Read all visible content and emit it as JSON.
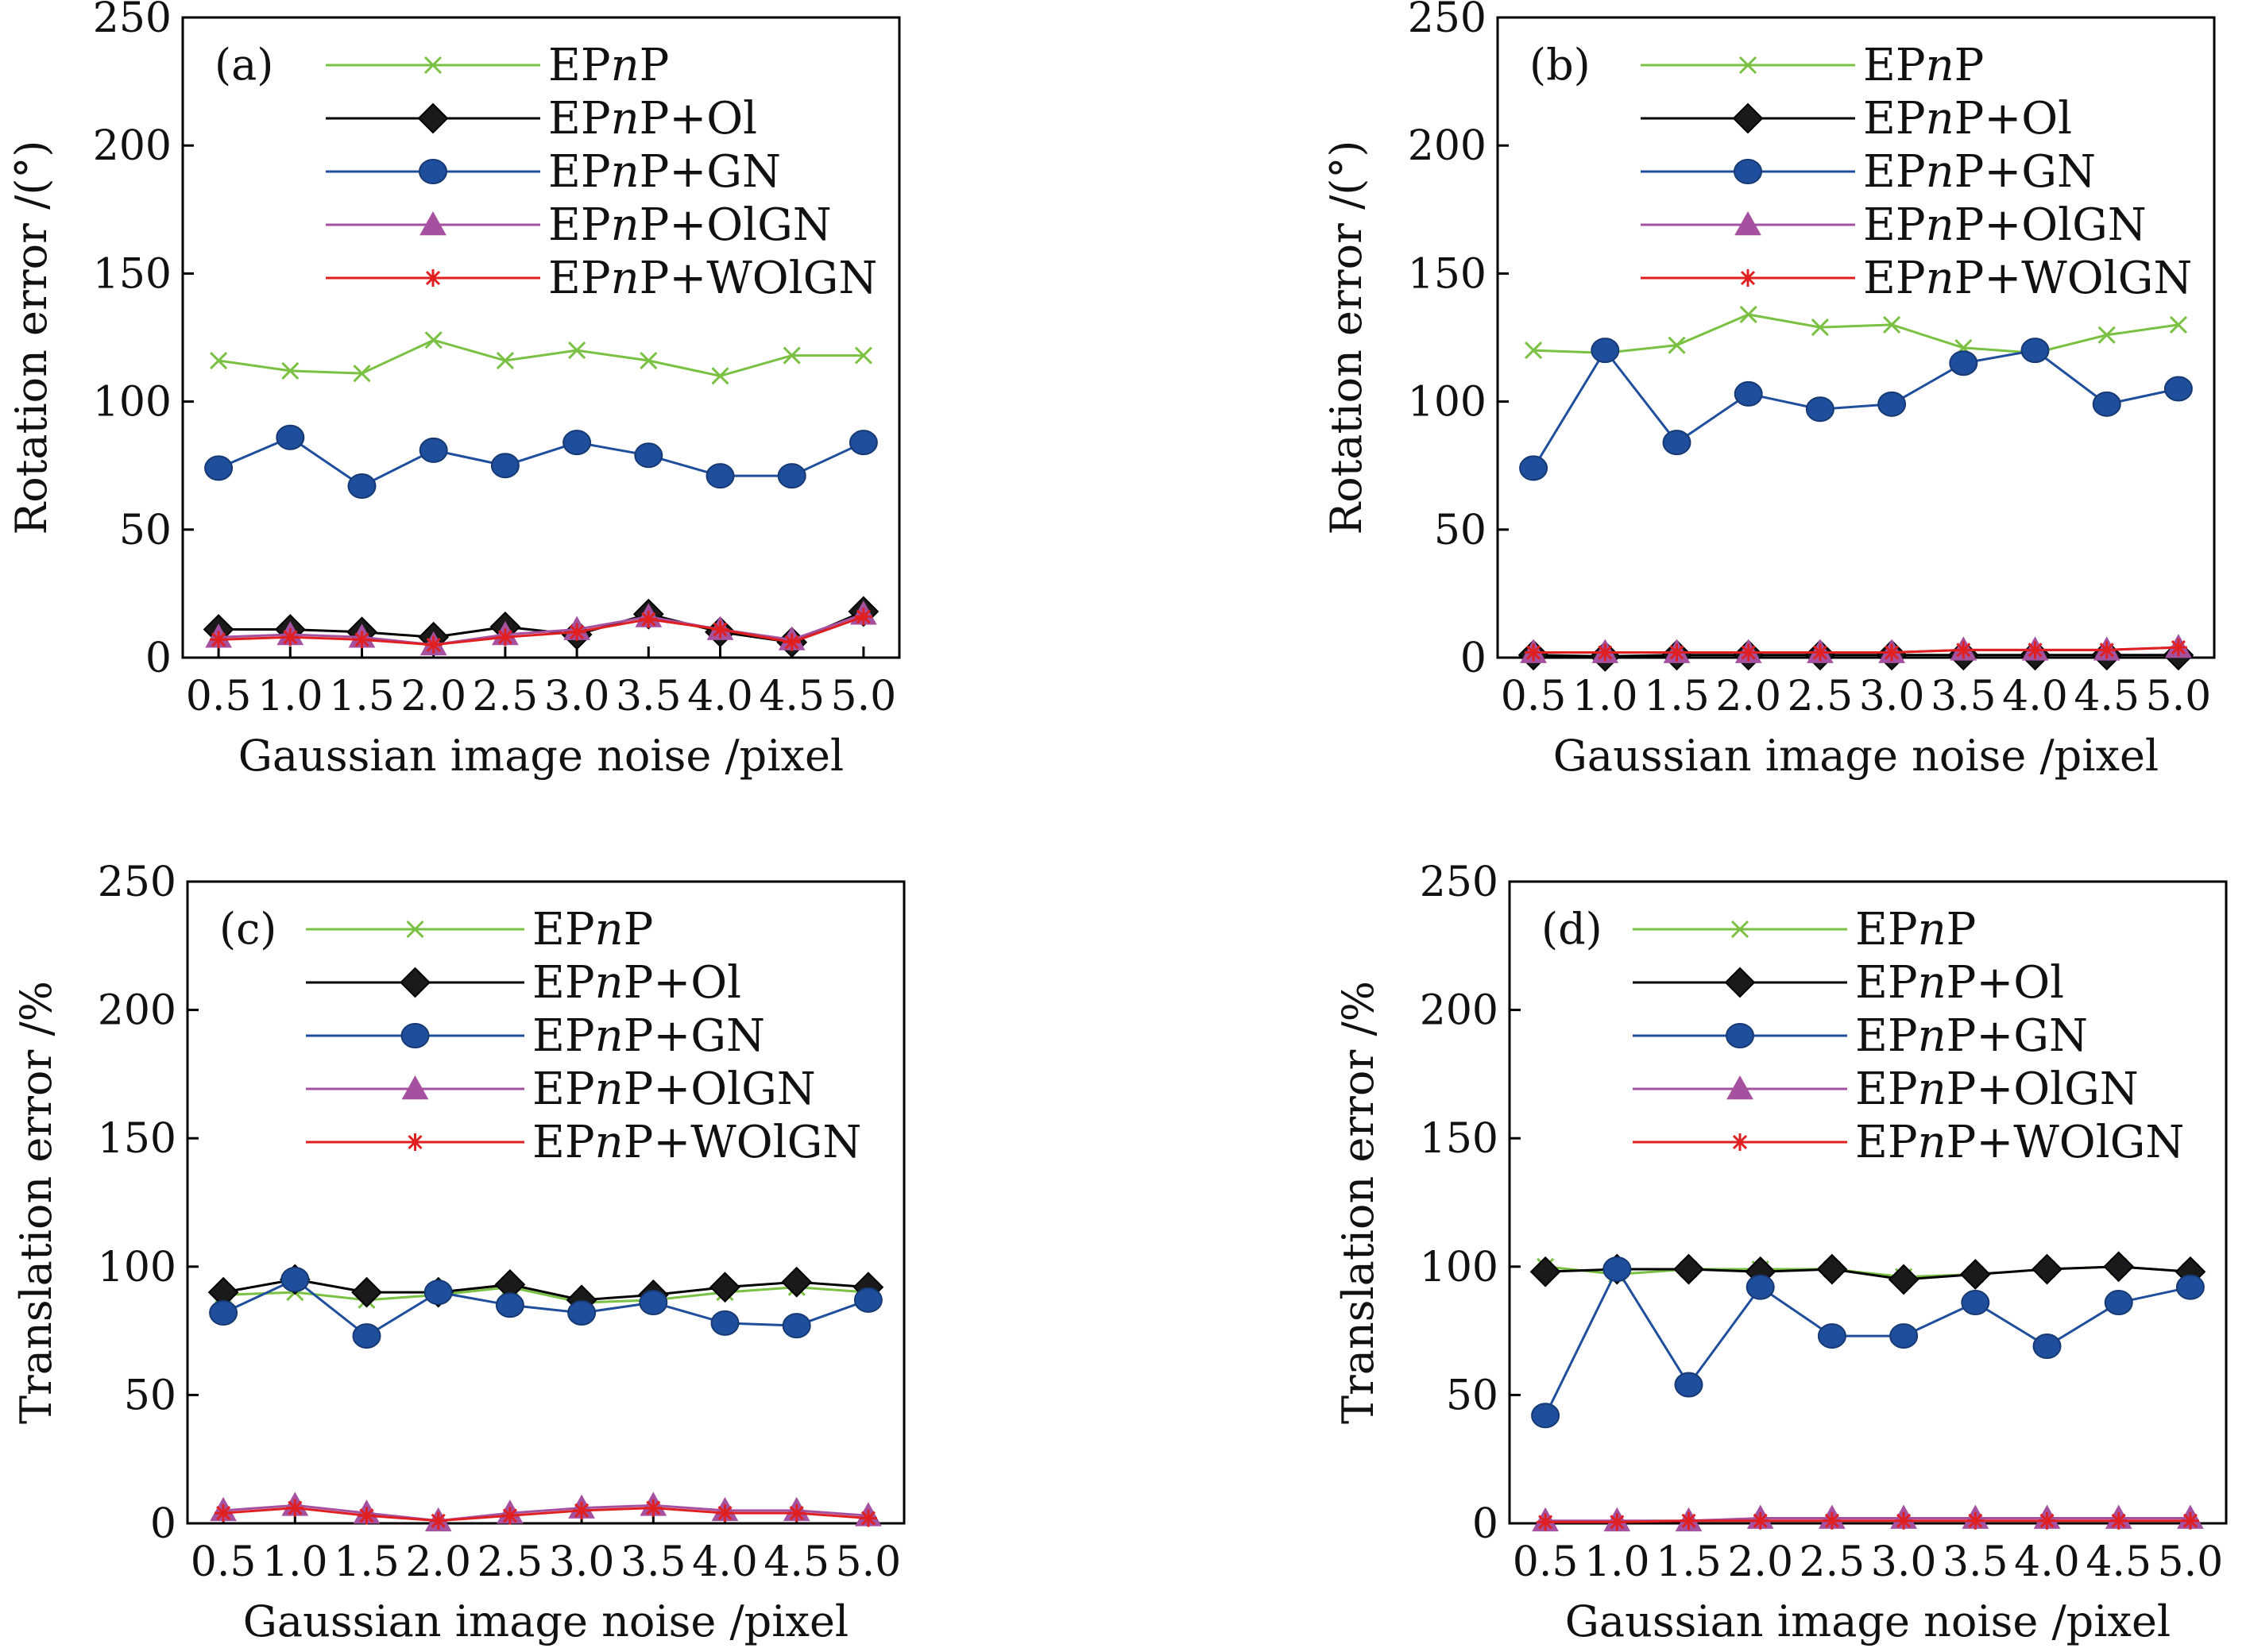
{
  "chart_data": [
    {
      "type": "line",
      "panel_label": "(a)",
      "xlabel": "Gaussian image noise /pixel",
      "ylabel": "Rotation error /(°)",
      "ylim": [
        0,
        250
      ],
      "yticks": [
        "0",
        "50",
        "100",
        "150",
        "200",
        "250"
      ],
      "categories": [
        "0.5",
        "1.0",
        "1.5",
        "2.0",
        "2.5",
        "3.0",
        "3.5",
        "4.0",
        "4.5",
        "5.0"
      ],
      "legend_position": "top-right",
      "series": [
        {
          "name": "EPnP",
          "name_parts": [
            "EP",
            "n",
            "P"
          ],
          "color": "#7ac143",
          "marker": "x",
          "values": [
            116,
            112,
            111,
            124,
            116,
            120,
            116,
            110,
            118,
            118
          ]
        },
        {
          "name": "EPnP+Ol",
          "name_parts": [
            "EP",
            "n",
            "P+Ol"
          ],
          "color": "#000000",
          "marker": "diamond",
          "values": [
            11,
            11,
            10,
            8,
            12,
            9,
            17,
            10,
            6,
            18
          ]
        },
        {
          "name": "EPnP+GN",
          "name_parts": [
            "EP",
            "n",
            "P+GN"
          ],
          "color": "#1f4e9c",
          "marker": "circle",
          "values": [
            74,
            86,
            67,
            81,
            75,
            84,
            79,
            71,
            71,
            84
          ]
        },
        {
          "name": "EPnP+OlGN",
          "name_parts": [
            "EP",
            "n",
            "P+OlGN"
          ],
          "color": "#a650a0",
          "marker": "triangle",
          "values": [
            8,
            9,
            8,
            5,
            9,
            11,
            16,
            11,
            7,
            17
          ]
        },
        {
          "name": "EPnP+WOlGN",
          "name_parts": [
            "EP",
            "n",
            "P+WOlGN"
          ],
          "color": "#e02020",
          "marker": "star",
          "values": [
            7,
            8,
            7,
            5,
            8,
            10,
            15,
            11,
            6,
            16
          ]
        }
      ]
    },
    {
      "type": "line",
      "panel_label": "(b)",
      "xlabel": "Gaussian image noise /pixel",
      "ylabel": "Rotation error /(°)",
      "ylim": [
        0,
        250
      ],
      "yticks": [
        "0",
        "50",
        "100",
        "150",
        "200",
        "250"
      ],
      "categories": [
        "0.5",
        "1.0",
        "1.5",
        "2.0",
        "2.5",
        "3.0",
        "3.5",
        "4.0",
        "4.5",
        "5.0"
      ],
      "legend_position": "top-right",
      "series": [
        {
          "name": "EPnP",
          "name_parts": [
            "EP",
            "n",
            "P"
          ],
          "color": "#7ac143",
          "marker": "x",
          "values": [
            120,
            119,
            122,
            134,
            129,
            130,
            121,
            119,
            126,
            130
          ]
        },
        {
          "name": "EPnP+Ol",
          "name_parts": [
            "EP",
            "n",
            "P+Ol"
          ],
          "color": "#000000",
          "marker": "diamond",
          "values": [
            1,
            0.5,
            1,
            1,
            1,
            1,
            1,
            1,
            1,
            1
          ]
        },
        {
          "name": "EPnP+GN",
          "name_parts": [
            "EP",
            "n",
            "P+GN"
          ],
          "color": "#1f4e9c",
          "marker": "circle",
          "values": [
            74,
            120,
            84,
            103,
            97,
            99,
            115,
            120,
            99,
            105
          ]
        },
        {
          "name": "EPnP+OlGN",
          "name_parts": [
            "EP",
            "n",
            "P+OlGN"
          ],
          "color": "#a650a0",
          "marker": "triangle",
          "values": [
            2,
            2,
            2,
            2,
            2,
            2,
            3,
            3,
            3,
            4
          ]
        },
        {
          "name": "EPnP+WOlGN",
          "name_parts": [
            "EP",
            "n",
            "P+WOlGN"
          ],
          "color": "#e02020",
          "marker": "star",
          "values": [
            2,
            2,
            2,
            2,
            2,
            2,
            3,
            3,
            3,
            4
          ]
        }
      ]
    },
    {
      "type": "line",
      "panel_label": "(c)",
      "xlabel": "Gaussian image noise /pixel",
      "ylabel": "Translation error /%",
      "ylim": [
        0,
        250
      ],
      "yticks": [
        "0",
        "50",
        "100",
        "150",
        "200",
        "250"
      ],
      "categories": [
        "0.5",
        "1.0",
        "1.5",
        "2.0",
        "2.5",
        "3.0",
        "3.5",
        "4.0",
        "4.5",
        "5.0"
      ],
      "legend_position": "top-right",
      "series": [
        {
          "name": "EPnP",
          "name_parts": [
            "EP",
            "n",
            "P"
          ],
          "color": "#7ac143",
          "marker": "x",
          "values": [
            89,
            90,
            87,
            89,
            92,
            86,
            87,
            90,
            92,
            90
          ]
        },
        {
          "name": "EPnP+Ol",
          "name_parts": [
            "EP",
            "n",
            "P+Ol"
          ],
          "color": "#000000",
          "marker": "diamond",
          "values": [
            90,
            95,
            90,
            90,
            93,
            87,
            89,
            92,
            94,
            92
          ]
        },
        {
          "name": "EPnP+GN",
          "name_parts": [
            "EP",
            "n",
            "P+GN"
          ],
          "color": "#1f4e9c",
          "marker": "circle",
          "values": [
            82,
            95,
            73,
            90,
            85,
            82,
            86,
            78,
            77,
            87
          ]
        },
        {
          "name": "EPnP+OlGN",
          "name_parts": [
            "EP",
            "n",
            "P+OlGN"
          ],
          "color": "#a650a0",
          "marker": "triangle",
          "values": [
            5,
            7,
            4,
            1,
            4,
            6,
            7,
            5,
            5,
            3
          ]
        },
        {
          "name": "EPnP+WOlGN",
          "name_parts": [
            "EP",
            "n",
            "P+WOlGN"
          ],
          "color": "#e02020",
          "marker": "star",
          "values": [
            4,
            6,
            3,
            1,
            3,
            5,
            6,
            4,
            4,
            2
          ]
        }
      ]
    },
    {
      "type": "line",
      "panel_label": "(d)",
      "xlabel": "Gaussian image noise /pixel",
      "ylabel": "Translation error /%",
      "ylim": [
        0,
        250
      ],
      "yticks": [
        "0",
        "50",
        "100",
        "150",
        "200",
        "250"
      ],
      "categories": [
        "0.5",
        "1.0",
        "1.5",
        "2.0",
        "2.5",
        "3.0",
        "3.5",
        "4.0",
        "4.5",
        "5.0"
      ],
      "legend_position": "top-right",
      "series": [
        {
          "name": "EPnP",
          "name_parts": [
            "EP",
            "n",
            "P"
          ],
          "color": "#7ac143",
          "marker": "x",
          "values": [
            100,
            97,
            99,
            99,
            99,
            96,
            97,
            99,
            100,
            98
          ]
        },
        {
          "name": "EPnP+Ol",
          "name_parts": [
            "EP",
            "n",
            "P+Ol"
          ],
          "color": "#000000",
          "marker": "diamond",
          "values": [
            98,
            99,
            99,
            98,
            99,
            95,
            97,
            99,
            100,
            98
          ]
        },
        {
          "name": "EPnP+GN",
          "name_parts": [
            "EP",
            "n",
            "P+GN"
          ],
          "color": "#1f4e9c",
          "marker": "circle",
          "values": [
            42,
            99,
            54,
            92,
            73,
            73,
            86,
            69,
            86,
            92
          ]
        },
        {
          "name": "EPnP+OlGN",
          "name_parts": [
            "EP",
            "n",
            "P+OlGN"
          ],
          "color": "#a650a0",
          "marker": "triangle",
          "values": [
            1,
            1,
            1,
            2,
            2,
            2,
            2,
            2,
            2,
            2
          ]
        },
        {
          "name": "EPnP+WOlGN",
          "name_parts": [
            "EP",
            "n",
            "P+WOlGN"
          ],
          "color": "#e02020",
          "marker": "star",
          "values": [
            0.5,
            0.5,
            1,
            1,
            1,
            1,
            1,
            1,
            1,
            1
          ]
        }
      ]
    }
  ]
}
